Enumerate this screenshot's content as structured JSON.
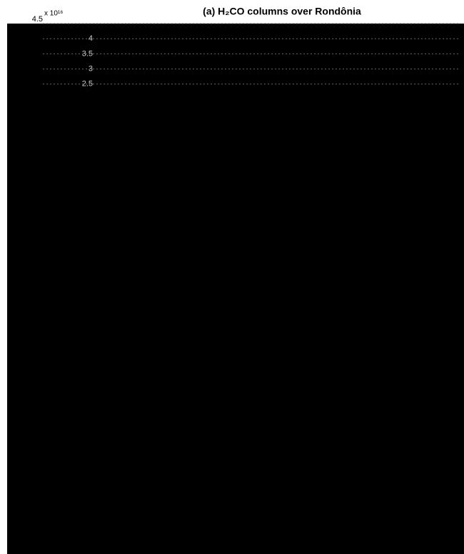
{
  "chart_data": {
    "type": "line",
    "title": "(a) H₂CO columns over Rondônia",
    "multiplier": "x 10¹⁶",
    "ylim": [
      2,
      4.5
    ],
    "yticks": [
      2.5,
      3,
      3.5,
      4,
      4.5
    ],
    "grid": true
  }
}
